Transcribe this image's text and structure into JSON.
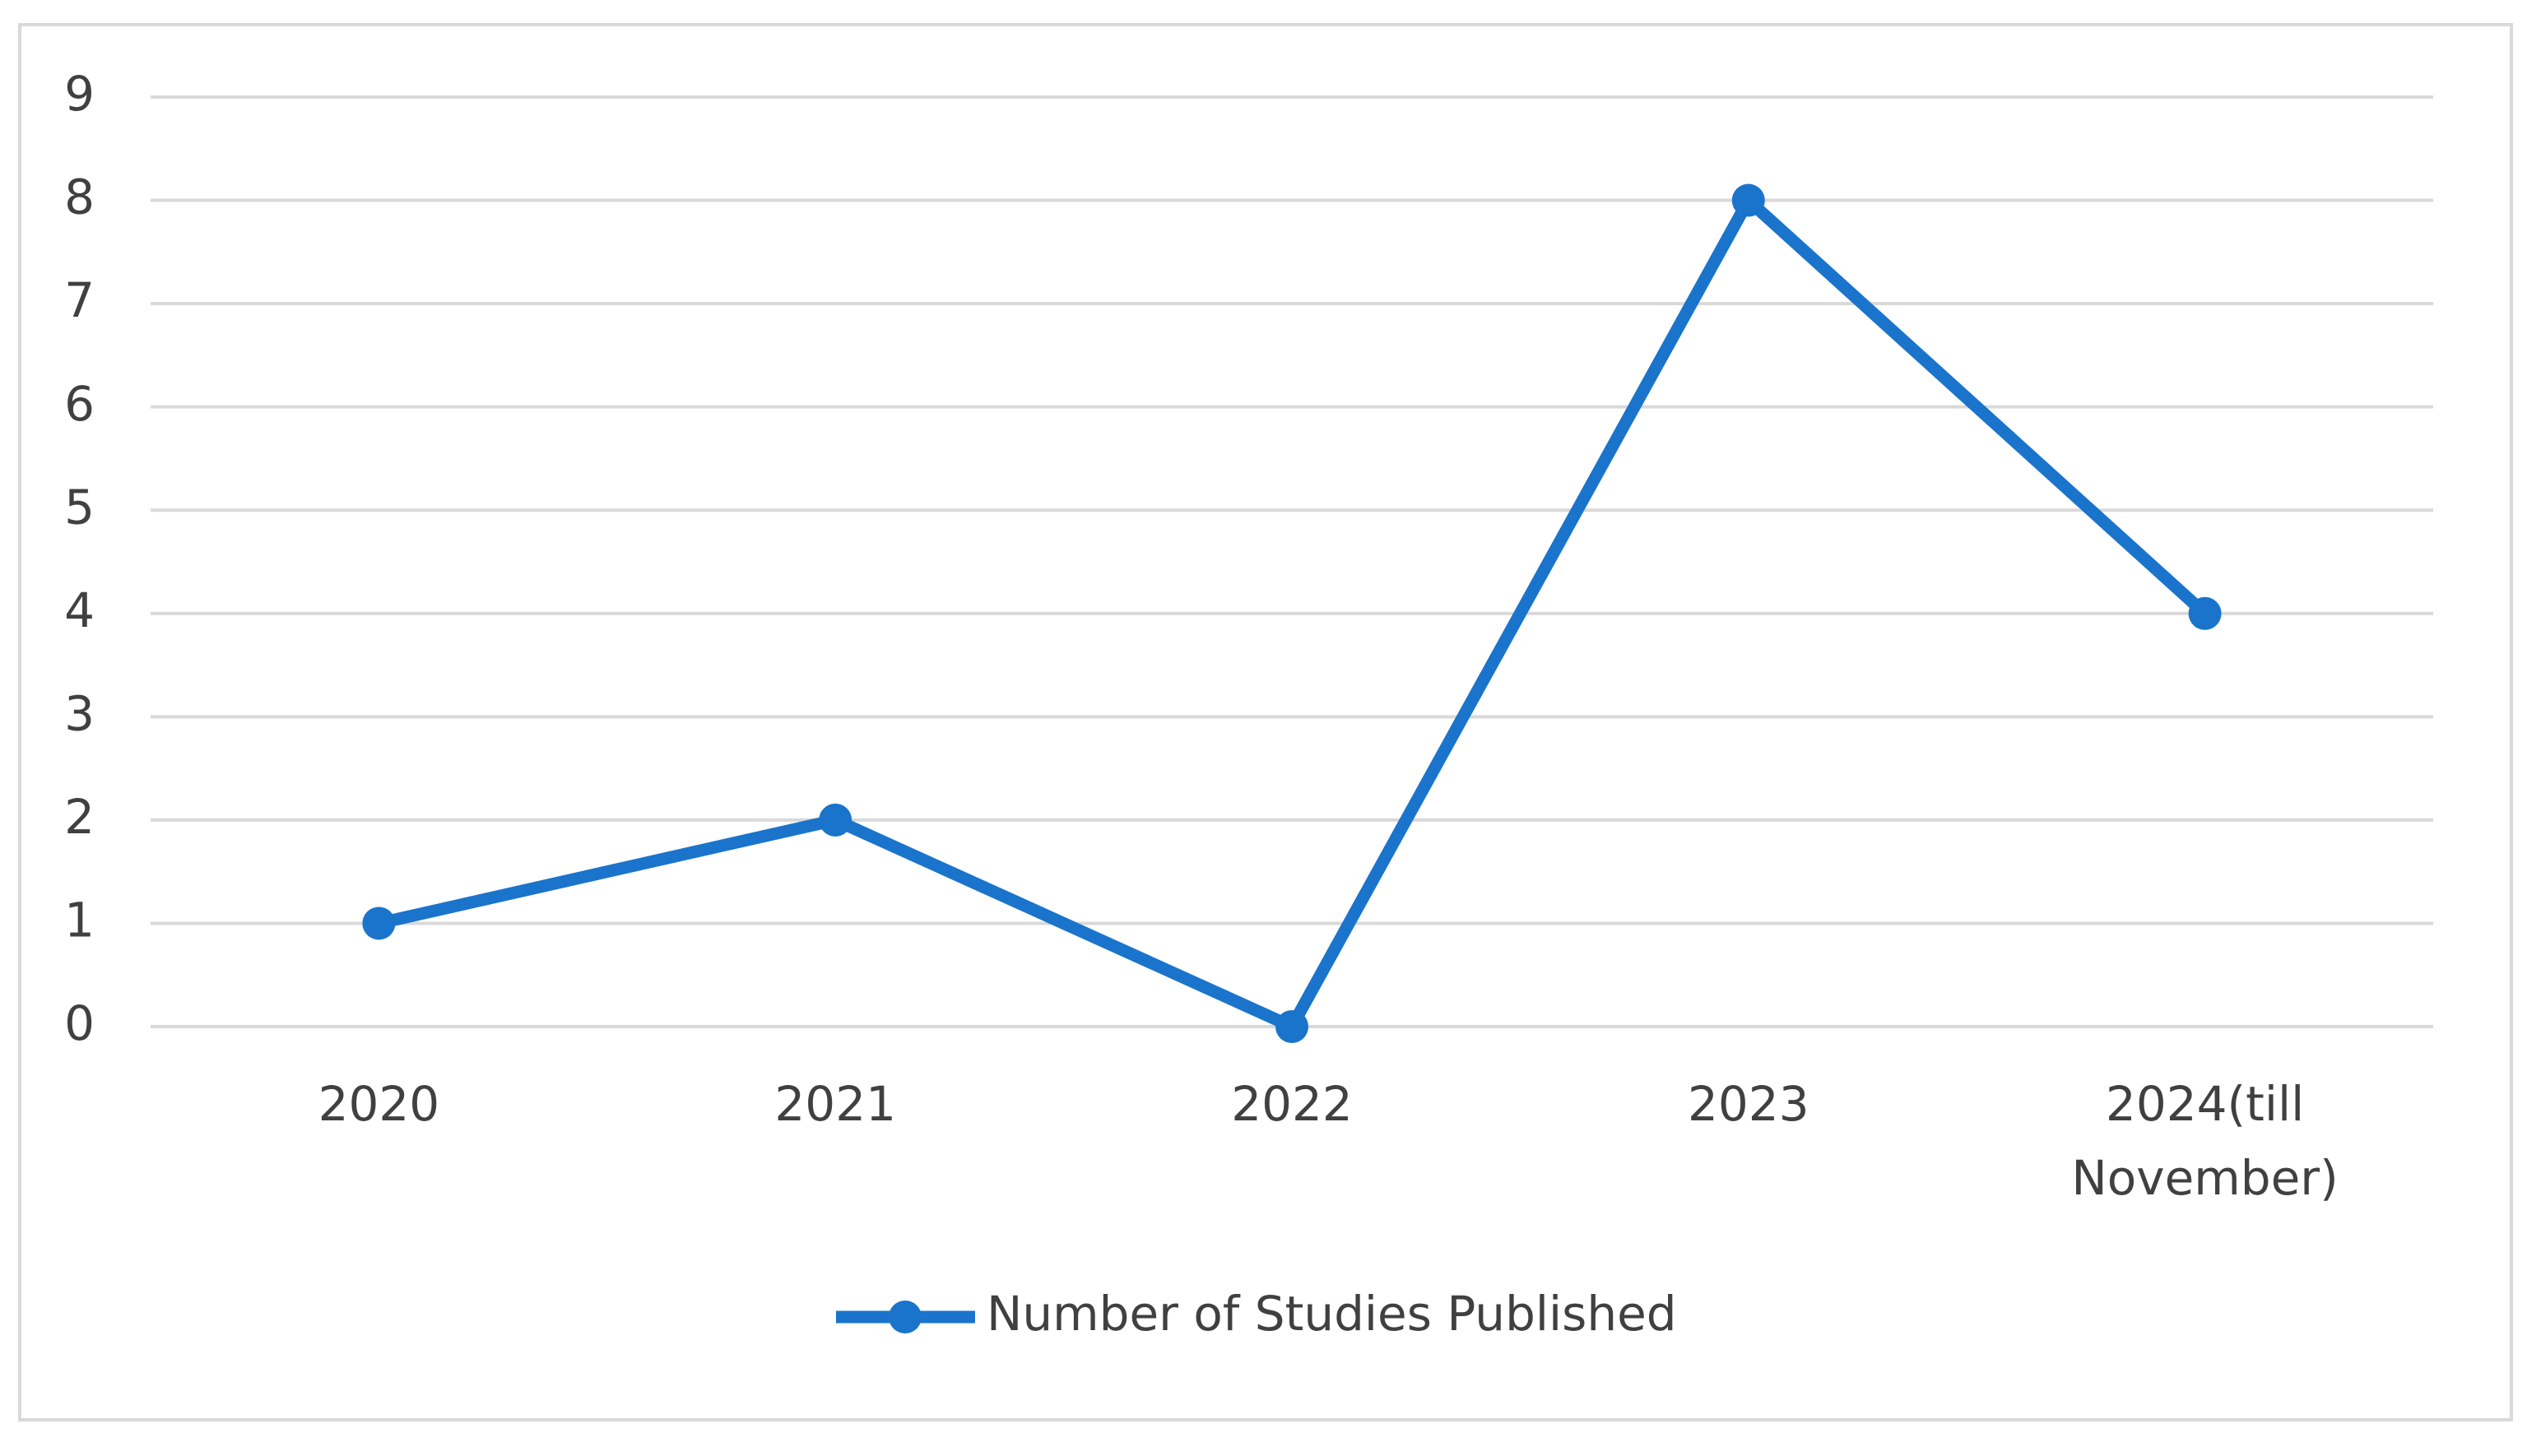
{
  "chart_data": {
    "type": "line",
    "categories": [
      "2020",
      "2021",
      "2022",
      "2023",
      "2024(till November)"
    ],
    "series": [
      {
        "name": "Number of Studies Published",
        "color": "#1a74cc",
        "values": [
          1,
          2,
          0,
          8,
          4
        ]
      }
    ],
    "ylim": [
      0,
      9
    ],
    "yticks": [
      0,
      1,
      2,
      3,
      4,
      5,
      6,
      7,
      8,
      9
    ],
    "grid": true,
    "legend": "bottom"
  }
}
